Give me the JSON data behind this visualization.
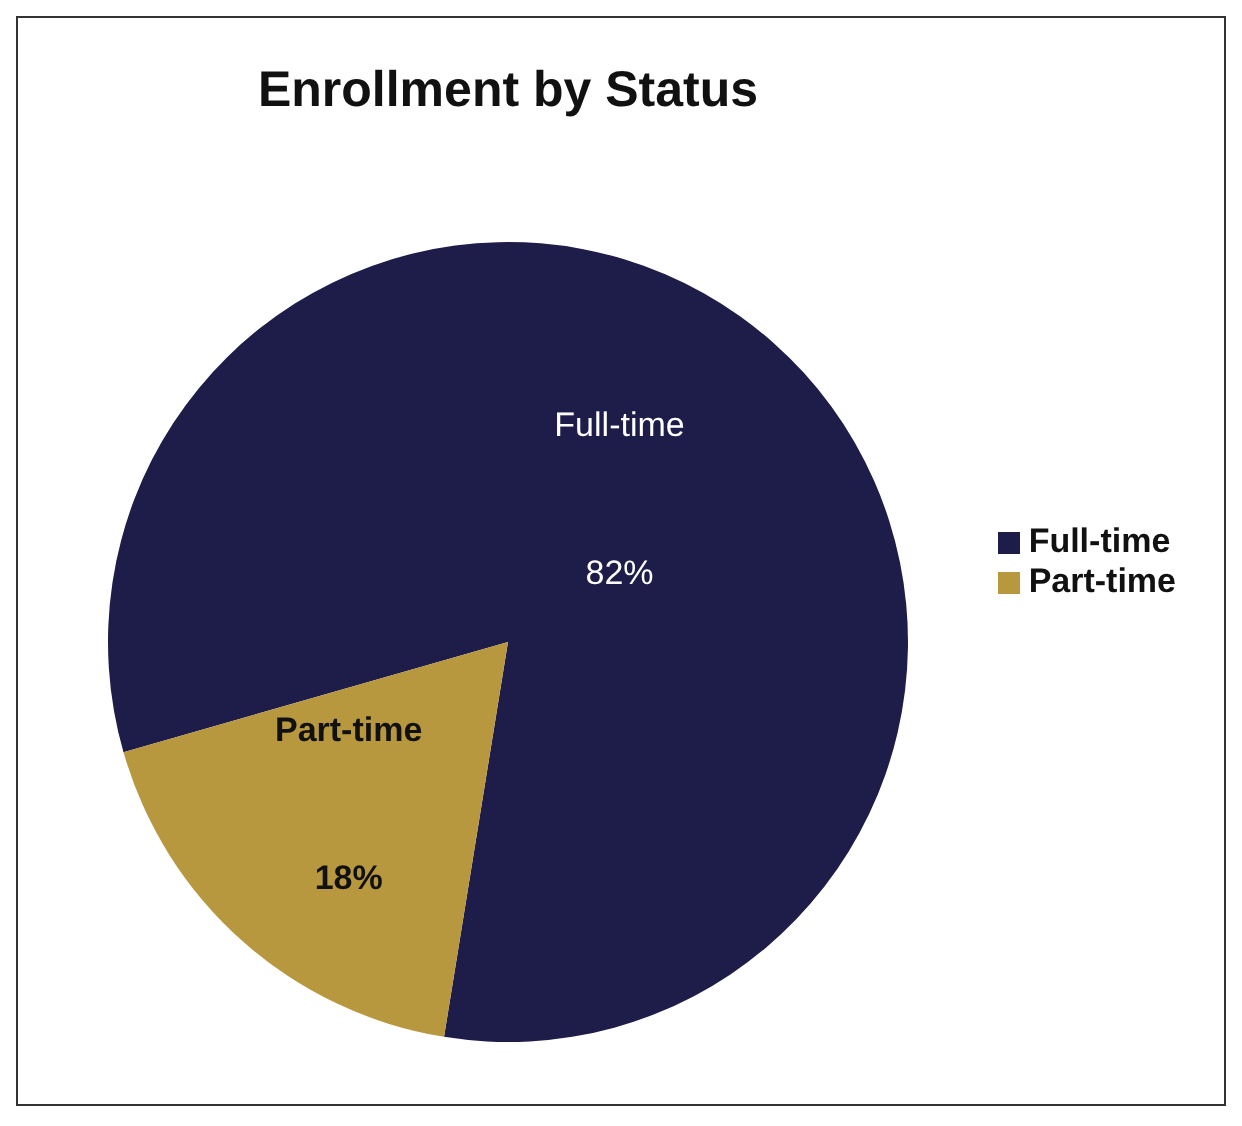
{
  "chart_data": {
    "type": "pie",
    "title": "Enrollment by Status",
    "categories": [
      "Full-time",
      "Part-time"
    ],
    "values": [
      82,
      18
    ],
    "colors": [
      "#1e1c48",
      "#b8983f"
    ],
    "value_labels": [
      "82%",
      "18%"
    ],
    "legend": "right"
  }
}
